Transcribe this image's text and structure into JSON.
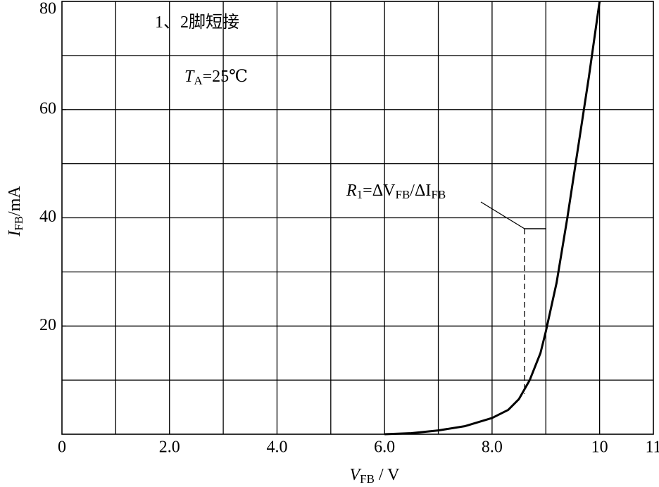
{
  "chart_data": {
    "type": "line",
    "x": [
      6.0,
      6.5,
      7.0,
      7.5,
      8.0,
      8.3,
      8.5,
      8.7,
      8.9,
      9.0,
      9.2,
      9.4,
      9.6,
      9.8,
      10.0
    ],
    "series": [
      {
        "color": "#000000",
        "values": [
          0,
          0.2,
          0.7,
          1.5,
          3,
          4.5,
          6.5,
          10,
          15,
          19,
          28,
          40,
          53,
          66,
          80
        ]
      }
    ],
    "xlim": [
      0,
      11
    ],
    "ylim": [
      0,
      80
    ],
    "xticks": [
      0,
      {
        "value": 2,
        "label": "2.0"
      },
      {
        "value": 4,
        "label": "4.0"
      },
      {
        "value": 6,
        "label": "6.0"
      },
      {
        "value": 8,
        "label": "8.0"
      },
      10,
      11
    ],
    "yticks": [
      20,
      40,
      60,
      80
    ],
    "xgrid": [
      1,
      2,
      3,
      4,
      5,
      6,
      7,
      8,
      9,
      10
    ],
    "ygrid": [
      10,
      20,
      30,
      40,
      50,
      60,
      70
    ],
    "grid": true,
    "xlabel": [
      {
        "text": "V",
        "style": "italic"
      },
      {
        "text": "FB",
        "style": "sub"
      },
      {
        "text": " / V"
      }
    ],
    "ylabel": [
      {
        "text": "I",
        "style": "italic"
      },
      {
        "text": "FB",
        "style": "sub"
      },
      {
        "text": "/mA"
      }
    ],
    "annotations": [
      [
        {
          "text": "1、2脚短接"
        }
      ],
      [
        {
          "text": "T",
          "style": "italic"
        },
        {
          "text": "A",
          "style": "sub"
        },
        {
          "text": "=25℃"
        }
      ],
      [
        {
          "text": "R",
          "style": "italic"
        },
        {
          "text": "1",
          "style": "sub"
        },
        {
          "text": "=ΔV"
        },
        {
          "text": "FB",
          "style": "sub"
        },
        {
          "text": "/ΔI"
        },
        {
          "text": "FB",
          "style": "sub"
        }
      ]
    ]
  }
}
